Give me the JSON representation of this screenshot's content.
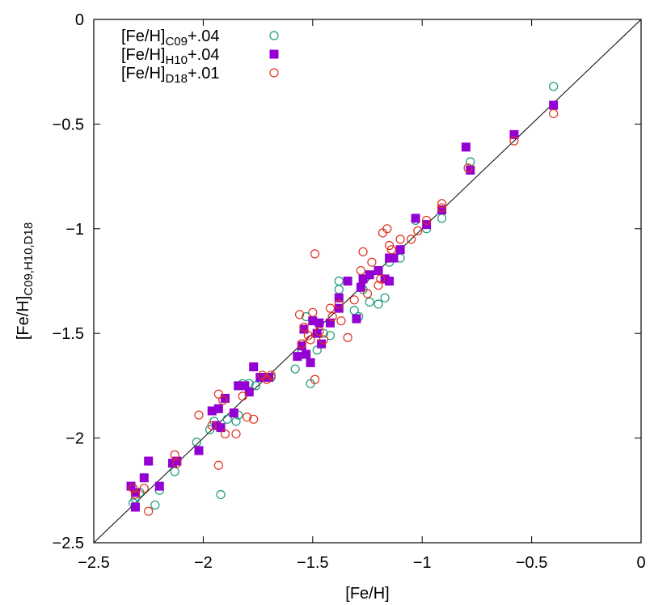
{
  "chart_data": {
    "type": "scatter",
    "title": "",
    "xlabel": "[Fe/H]",
    "ylabel": {
      "base": "[Fe/H]",
      "sub": "C09,H10,D18"
    },
    "xlim": [
      -2.5,
      0
    ],
    "ylim": [
      -2.5,
      0
    ],
    "xticks": [
      -2.5,
      -2,
      -1.5,
      -1,
      -0.5,
      0
    ],
    "yticks": [
      -2.5,
      -2,
      -1.5,
      -1,
      -0.5,
      0
    ],
    "xtick_labels": [
      "−2.5",
      "−2",
      "−1.5",
      "−1",
      "−0.5",
      "0"
    ],
    "ytick_labels": [
      "−2.5",
      "−2",
      "−1.5",
      "−1",
      "−0.5",
      "0"
    ],
    "grid": false,
    "legend_position": "top-left",
    "reference_line": "y = x",
    "series": [
      {
        "legend_base": "[Fe/H]",
        "legend_sub": "C09",
        "legend_suffix": "+.04",
        "marker": "open-circle",
        "color": "#1a9a7a",
        "points": [
          [
            -2.32,
            -2.31
          ],
          [
            -2.31,
            -2.29
          ],
          [
            -2.29,
            -2.26
          ],
          [
            -2.22,
            -2.32
          ],
          [
            -2.2,
            -2.25
          ],
          [
            -2.13,
            -2.16
          ],
          [
            -2.03,
            -2.02
          ],
          [
            -1.97,
            -1.96
          ],
          [
            -1.95,
            -1.92
          ],
          [
            -1.92,
            -2.27
          ],
          [
            -1.89,
            -1.91
          ],
          [
            -1.85,
            -1.92
          ],
          [
            -1.84,
            -1.89
          ],
          [
            -1.82,
            -1.74
          ],
          [
            -1.79,
            -1.74
          ],
          [
            -1.76,
            -1.75
          ],
          [
            -1.73,
            -1.71
          ],
          [
            -1.69,
            -1.71
          ],
          [
            -1.58,
            -1.67
          ],
          [
            -1.55,
            -1.58
          ],
          [
            -1.53,
            -1.42
          ],
          [
            -1.51,
            -1.74
          ],
          [
            -1.48,
            -1.58
          ],
          [
            -1.45,
            -1.5
          ],
          [
            -1.42,
            -1.51
          ],
          [
            -1.38,
            -1.29
          ],
          [
            -1.38,
            -1.25
          ],
          [
            -1.31,
            -1.39
          ],
          [
            -1.29,
            -1.42
          ],
          [
            -1.27,
            -1.29
          ],
          [
            -1.24,
            -1.35
          ],
          [
            -1.2,
            -1.36
          ],
          [
            -1.17,
            -1.33
          ],
          [
            -1.15,
            -1.16
          ],
          [
            -1.1,
            -1.14
          ],
          [
            -1.03,
            -0.96
          ],
          [
            -0.98,
            -1.0
          ],
          [
            -0.91,
            -0.95
          ],
          [
            -0.78,
            -0.68
          ],
          [
            -0.4,
            -0.32
          ]
        ]
      },
      {
        "legend_base": "[Fe/H]",
        "legend_sub": "H10",
        "legend_suffix": "+.04",
        "marker": "filled-square",
        "color": "#9400d3",
        "points": [
          [
            -2.33,
            -2.23
          ],
          [
            -2.31,
            -2.33
          ],
          [
            -2.31,
            -2.26
          ],
          [
            -2.27,
            -2.19
          ],
          [
            -2.25,
            -2.11
          ],
          [
            -2.2,
            -2.23
          ],
          [
            -2.14,
            -2.12
          ],
          [
            -2.12,
            -2.11
          ],
          [
            -2.02,
            -2.06
          ],
          [
            -1.96,
            -1.87
          ],
          [
            -1.94,
            -1.94
          ],
          [
            -1.93,
            -1.86
          ],
          [
            -1.92,
            -1.95
          ],
          [
            -1.9,
            -1.81
          ],
          [
            -1.86,
            -1.88
          ],
          [
            -1.84,
            -1.75
          ],
          [
            -1.81,
            -1.75
          ],
          [
            -1.79,
            -1.78
          ],
          [
            -1.77,
            -1.66
          ],
          [
            -1.74,
            -1.71
          ],
          [
            -1.7,
            -1.71
          ],
          [
            -1.57,
            -1.61
          ],
          [
            -1.55,
            -1.56
          ],
          [
            -1.54,
            -1.48
          ],
          [
            -1.53,
            -1.6
          ],
          [
            -1.51,
            -1.64
          ],
          [
            -1.5,
            -1.44
          ],
          [
            -1.48,
            -1.5
          ],
          [
            -1.47,
            -1.45
          ],
          [
            -1.46,
            -1.55
          ],
          [
            -1.42,
            -1.45
          ],
          [
            -1.38,
            -1.33
          ],
          [
            -1.38,
            -1.38
          ],
          [
            -1.34,
            -1.25
          ],
          [
            -1.3,
            -1.43
          ],
          [
            -1.28,
            -1.28
          ],
          [
            -1.27,
            -1.24
          ],
          [
            -1.24,
            -1.22
          ],
          [
            -1.2,
            -1.2
          ],
          [
            -1.17,
            -1.24
          ],
          [
            -1.15,
            -1.14
          ],
          [
            -1.15,
            -1.25
          ],
          [
            -1.13,
            -1.14
          ],
          [
            -1.1,
            -1.1
          ],
          [
            -1.03,
            -0.95
          ],
          [
            -0.98,
            -0.98
          ],
          [
            -0.91,
            -0.91
          ],
          [
            -0.8,
            -0.61
          ],
          [
            -0.78,
            -0.72
          ],
          [
            -0.58,
            -0.55
          ],
          [
            -0.4,
            -0.41
          ]
        ]
      },
      {
        "legend_base": "[Fe/H]",
        "legend_sub": "D18",
        "legend_suffix": "+.01",
        "marker": "open-circle",
        "color": "#e0301e",
        "points": [
          [
            -2.32,
            -2.24
          ],
          [
            -2.31,
            -2.27
          ],
          [
            -2.27,
            -2.24
          ],
          [
            -2.25,
            -2.35
          ],
          [
            -2.13,
            -2.08
          ],
          [
            -2.12,
            -2.12
          ],
          [
            -2.02,
            -1.89
          ],
          [
            -1.96,
            -1.94
          ],
          [
            -1.93,
            -1.79
          ],
          [
            -1.93,
            -2.13
          ],
          [
            -1.91,
            -1.82
          ],
          [
            -1.9,
            -1.98
          ],
          [
            -1.85,
            -1.98
          ],
          [
            -1.82,
            -1.8
          ],
          [
            -1.8,
            -1.9
          ],
          [
            -1.77,
            -1.91
          ],
          [
            -1.73,
            -1.7
          ],
          [
            -1.71,
            -1.72
          ],
          [
            -1.69,
            -1.7
          ],
          [
            -1.56,
            -1.41
          ],
          [
            -1.55,
            -1.55
          ],
          [
            -1.54,
            -1.47
          ],
          [
            -1.52,
            -1.51
          ],
          [
            -1.51,
            -1.53
          ],
          [
            -1.5,
            -1.4
          ],
          [
            -1.49,
            -1.12
          ],
          [
            -1.49,
            -1.72
          ],
          [
            -1.47,
            -1.49
          ],
          [
            -1.45,
            -1.53
          ],
          [
            -1.42,
            -1.38
          ],
          [
            -1.41,
            -1.42
          ],
          [
            -1.38,
            -1.36
          ],
          [
            -1.37,
            -1.44
          ],
          [
            -1.34,
            -1.52
          ],
          [
            -1.31,
            -1.34
          ],
          [
            -1.28,
            -1.2
          ],
          [
            -1.27,
            -1.11
          ],
          [
            -1.25,
            -1.31
          ],
          [
            -1.23,
            -1.16
          ],
          [
            -1.2,
            -1.27
          ],
          [
            -1.19,
            -1.24
          ],
          [
            -1.18,
            -1.02
          ],
          [
            -1.16,
            -1.0
          ],
          [
            -1.15,
            -1.08
          ],
          [
            -1.14,
            -1.1
          ],
          [
            -1.1,
            -1.05
          ],
          [
            -1.05,
            -1.05
          ],
          [
            -1.02,
            -1.01
          ],
          [
            -0.98,
            -0.96
          ],
          [
            -0.91,
            -0.88
          ],
          [
            -0.91,
            -0.9
          ],
          [
            -0.79,
            -0.71
          ],
          [
            -0.58,
            -0.58
          ],
          [
            -0.4,
            -0.45
          ]
        ]
      }
    ]
  }
}
